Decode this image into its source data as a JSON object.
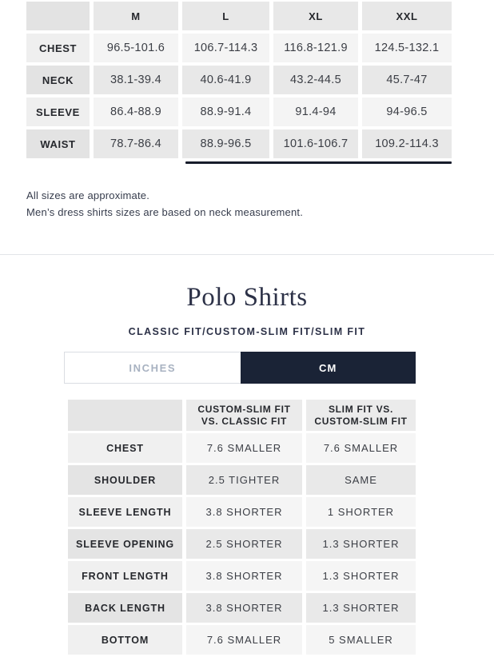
{
  "top_table": {
    "columns": [
      "M",
      "L",
      "XL",
      "XXL"
    ],
    "rows": [
      {
        "label": "CHEST",
        "values": [
          "96.5-101.6",
          "106.7-114.3",
          "116.8-121.9",
          "124.5-132.1"
        ]
      },
      {
        "label": "NECK",
        "values": [
          "38.1-39.4",
          "40.6-41.9",
          "43.2-44.5",
          "45.7-47"
        ]
      },
      {
        "label": "SLEEVE",
        "values": [
          "86.4-88.9",
          "88.9-91.4",
          "91.4-94",
          "94-96.5"
        ]
      },
      {
        "label": "WAIST",
        "values": [
          "78.7-86.4",
          "88.9-96.5",
          "101.6-106.7",
          "109.2-114.3"
        ]
      }
    ]
  },
  "notes": [
    "All sizes are approximate.",
    "Men’s dress shirts sizes are based on neck measurement."
  ],
  "polo_section": {
    "title": "Polo Shirts",
    "subtitle": "CLASSIC FIT/CUSTOM-SLIM FIT/SLIM FIT",
    "unit_toggle": {
      "inches_label": "INCHES",
      "cm_label": "CM",
      "selected": "CM"
    },
    "comparison_table": {
      "columns": [
        "CUSTOM-SLIM FIT VS. CLASSIC FIT",
        "SLIM FIT VS. CUSTOM-SLIM FIT"
      ],
      "rows": [
        {
          "label": "CHEST",
          "values": [
            "7.6 SMALLER",
            "7.6 SMALLER"
          ]
        },
        {
          "label": "SHOULDER",
          "values": [
            "2.5 TIGHTER",
            "SAME"
          ]
        },
        {
          "label": "SLEEVE LENGTH",
          "values": [
            "3.8 SHORTER",
            "1 SHORTER"
          ]
        },
        {
          "label": "SLEEVE OPENING",
          "values": [
            "2.5 SHORTER",
            "1.3 SHORTER"
          ]
        },
        {
          "label": "FRONT LENGTH",
          "values": [
            "3.8 SHORTER",
            "1.3 SHORTER"
          ]
        },
        {
          "label": "BACK LENGTH",
          "values": [
            "3.8 SHORTER",
            "1.3 SHORTER"
          ]
        },
        {
          "label": "BOTTOM",
          "values": [
            "7.6 SMALLER",
            "5 SMALLER"
          ]
        }
      ]
    }
  },
  "colors": {
    "navy": "#1a2336",
    "scrollbar": "#171c2b",
    "heading_text": "#2c3147",
    "cell_dark": "#e8e8e8",
    "cell_light": "#f4f4f4",
    "inactive_toggle_text": "#a8b2c1"
  }
}
